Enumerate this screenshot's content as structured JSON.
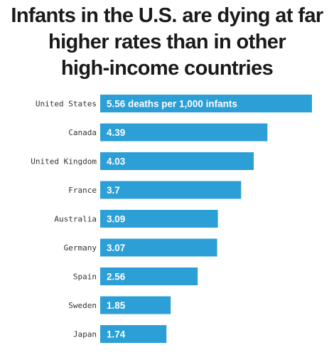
{
  "title_lines": [
    "Infants in the U.S. are dying at far",
    "higher rates than in other",
    "high-income countries"
  ],
  "chart_data": {
    "type": "bar",
    "orientation": "horizontal",
    "title": "Infants in the U.S. are dying at far higher rates than in other high-income countries",
    "categories": [
      "United States",
      "Canada",
      "United Kingdom",
      "France",
      "Australia",
      "Germany",
      "Spain",
      "Sweden",
      "Japan"
    ],
    "values": [
      5.56,
      4.39,
      4.03,
      3.7,
      3.09,
      3.07,
      2.56,
      1.85,
      1.74
    ],
    "data_labels": [
      "5.56 deaths per 1,000 infants",
      "4.39",
      "4.03",
      "3.7",
      "3.09",
      "3.07",
      "2.56",
      "1.85",
      "1.74"
    ],
    "xlim": [
      0,
      5.56
    ],
    "xlabel": "",
    "ylabel": "",
    "grid": false,
    "colors": {
      "bar": "#2b9fd6"
    }
  }
}
